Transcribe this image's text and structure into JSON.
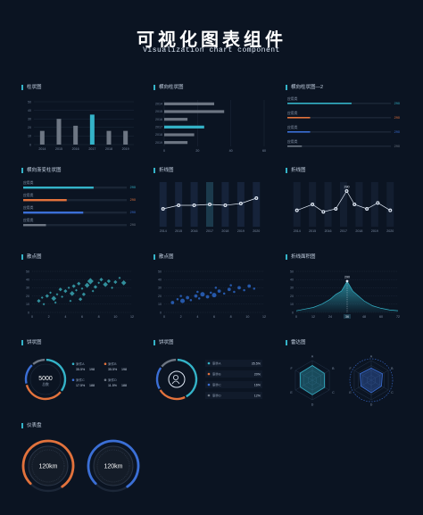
{
  "header": {
    "title": "可视化图表组件",
    "subtitle": "Visualization chart component"
  },
  "panel_titles": {
    "bar": "柱状图",
    "hbar": "横向柱状图",
    "hbar2": "横向柱状图—2",
    "gradient_bar": "横向渐变柱状图",
    "line_bar": "折线图",
    "line": "折线图",
    "scatter1": "散点图",
    "scatter2": "散点图",
    "area": "折线面积图",
    "pie1": "饼状图",
    "pie2": "饼状图",
    "radar": "雷达图",
    "gauge": "仪表盘"
  },
  "colors": {
    "accent": "#34b3c8",
    "orange": "#e2723c",
    "blue": "#3b6fd6",
    "gray": "#6d7683",
    "grid": "#1e2b3d"
  },
  "chart_data": [
    {
      "id": "bar",
      "type": "bar",
      "categories": [
        "2014",
        "2015",
        "2016",
        "2017",
        "2018",
        "2019"
      ],
      "values": [
        16,
        30,
        22,
        35,
        16,
        16
      ],
      "highlight_index": 3,
      "ylim": [
        0,
        50
      ],
      "yticks": [
        "0",
        "10",
        "20",
        "30",
        "40",
        "50"
      ]
    },
    {
      "id": "hbar",
      "type": "bar",
      "orientation": "horizontal",
      "categories": [
        "2014",
        "2015",
        "2016",
        "2017",
        "2018",
        "2019"
      ],
      "values": [
        30,
        36,
        14,
        24,
        18,
        14
      ],
      "highlight_index": 3,
      "xlim": [
        0,
        60
      ],
      "xticks": [
        "0",
        "20",
        "40",
        "60"
      ]
    },
    {
      "id": "hbar2",
      "type": "bar",
      "orientation": "horizontal",
      "items": [
        {
          "label": "应用类",
          "value_label": "290",
          "fraction": 0.62,
          "color": "#34b3c8"
        },
        {
          "label": "应用类",
          "value_label": "290",
          "fraction": 0.22,
          "color": "#e2723c"
        },
        {
          "label": "应用类",
          "value_label": "290",
          "fraction": 0.22,
          "color": "#3b6fd6"
        },
        {
          "label": "应用类",
          "value_label": "290",
          "fraction": 0.14,
          "color": "#6d7683"
        }
      ]
    },
    {
      "id": "gradient_bar",
      "type": "bar",
      "orientation": "horizontal",
      "items": [
        {
          "label": "应用类",
          "value_label": "290",
          "fraction": 0.68,
          "color": "#34b3c8"
        },
        {
          "label": "应用类",
          "value_label": "290",
          "fraction": 0.42,
          "color": "#e2723c"
        },
        {
          "label": "应用类",
          "value_label": "290",
          "fraction": 0.58,
          "color": "#3b6fd6"
        },
        {
          "label": "应用类",
          "value_label": "290",
          "fraction": 0.22,
          "color": "#6d7683"
        }
      ]
    },
    {
      "id": "line_bar",
      "type": "line",
      "categories": [
        "2014",
        "2015",
        "2016",
        "2017",
        "2018",
        "2019",
        "2020"
      ],
      "values": [
        20,
        24,
        24,
        25,
        24,
        26,
        32
      ],
      "highlight_index": 3,
      "ylim": [
        0,
        50
      ]
    },
    {
      "id": "line",
      "type": "line",
      "categories": [
        "2014",
        "2015",
        "2016",
        "2017",
        "2018",
        "2019",
        "2020"
      ],
      "values": [
        22,
        30,
        20,
        24,
        48,
        30,
        24,
        32,
        22
      ],
      "x": [
        0,
        1,
        1.7,
        2.5,
        3.2,
        3.7,
        4.5,
        5.2,
        6
      ],
      "peak_label": "290",
      "peak_index": 4,
      "ylim": [
        0,
        60
      ]
    },
    {
      "id": "scatter1",
      "type": "scatter",
      "ylim": [
        0,
        50
      ],
      "yticks": [
        "0",
        "10",
        "20",
        "30",
        "40",
        "50"
      ],
      "xticks": [
        "0",
        "2",
        "4",
        "6",
        "8",
        "10",
        "12"
      ],
      "xlim": [
        0,
        12
      ],
      "points": [
        [
          0.8,
          14
        ],
        [
          1.2,
          18
        ],
        [
          1.8,
          20
        ],
        [
          2.2,
          24
        ],
        [
          2.6,
          17
        ],
        [
          3.0,
          22
        ],
        [
          3.4,
          28
        ],
        [
          3.6,
          19
        ],
        [
          4.0,
          26
        ],
        [
          4.4,
          30
        ],
        [
          4.8,
          23
        ],
        [
          5.0,
          32
        ],
        [
          5.3,
          27
        ],
        [
          5.6,
          35
        ],
        [
          6.0,
          29
        ],
        [
          6.2,
          22
        ],
        [
          6.6,
          33
        ],
        [
          7.0,
          38
        ],
        [
          7.3,
          26
        ],
        [
          7.6,
          31
        ],
        [
          8.0,
          36
        ],
        [
          8.3,
          40
        ],
        [
          8.8,
          34
        ],
        [
          9.2,
          38
        ],
        [
          9.6,
          30
        ],
        [
          10.0,
          37
        ],
        [
          10.5,
          42
        ],
        [
          11.0,
          36
        ],
        [
          1.4,
          10
        ],
        [
          2.8,
          12
        ],
        [
          5.8,
          16
        ],
        [
          4.6,
          14
        ]
      ],
      "sizes": [
        3,
        2,
        3,
        2,
        4,
        2,
        3,
        2,
        3,
        2,
        4,
        3,
        2,
        3,
        2,
        3,
        4,
        5,
        2,
        3,
        2,
        3,
        4,
        3,
        2,
        3,
        2,
        4,
        2,
        2,
        3,
        2
      ]
    },
    {
      "id": "scatter2",
      "type": "scatter",
      "ylim": [
        0,
        50
      ],
      "yticks": [
        "0",
        "10",
        "20",
        "30",
        "40",
        "50"
      ],
      "xticks": [
        "0",
        "2",
        "4",
        "6",
        "8",
        "10",
        "12"
      ],
      "xlim": [
        0,
        12
      ],
      "points": [
        [
          1.0,
          12
        ],
        [
          1.6,
          16
        ],
        [
          2.2,
          14
        ],
        [
          2.8,
          18
        ],
        [
          3.2,
          15
        ],
        [
          3.8,
          20
        ],
        [
          4.2,
          17
        ],
        [
          4.6,
          22
        ],
        [
          5.2,
          19
        ],
        [
          5.6,
          24
        ],
        [
          6.0,
          21
        ],
        [
          6.6,
          26
        ],
        [
          7.2,
          23
        ],
        [
          7.8,
          28
        ],
        [
          8.4,
          25
        ],
        [
          9.0,
          30
        ],
        [
          9.6,
          27
        ],
        [
          10.2,
          32
        ],
        [
          10.8,
          29
        ],
        [
          2.0,
          20
        ],
        [
          4.0,
          25
        ],
        [
          6.2,
          30
        ],
        [
          8.0,
          33
        ]
      ],
      "sizes": [
        3,
        2,
        4,
        3,
        2,
        3,
        2,
        4,
        3,
        2,
        4,
        3,
        2,
        3,
        2,
        3,
        2,
        3,
        2,
        2,
        2,
        2,
        2
      ]
    },
    {
      "id": "area",
      "type": "area",
      "ylim": [
        0,
        50
      ],
      "yticks": [
        "0",
        "10",
        "20",
        "30",
        "40",
        "50"
      ],
      "xticks": [
        "0",
        "12",
        "24",
        "36",
        "48",
        "60",
        "72"
      ],
      "highlight_tick_index": 3,
      "x": [
        0,
        6,
        12,
        18,
        24,
        28,
        32,
        36,
        40,
        44,
        48,
        54,
        60,
        66,
        72
      ],
      "values": [
        2,
        4,
        6,
        10,
        16,
        22,
        26,
        38,
        26,
        20,
        14,
        8,
        5,
        3,
        2
      ],
      "peak_label": "290",
      "peak_index": 7
    },
    {
      "id": "pie1",
      "type": "pie",
      "center_value": "5000",
      "center_label": "总数",
      "legend": [
        {
          "name": "案件A",
          "percent": "35.5%",
          "count": "198",
          "color": "#34b3c8"
        },
        {
          "name": "案件B",
          "percent": "35.5%",
          "count": "198",
          "color": "#e2723c"
        },
        {
          "name": "案件C",
          "percent": "17.5%",
          "count": "188",
          "color": "#3b6fd6"
        },
        {
          "name": "案件D",
          "percent": "11.5%",
          "count": "188",
          "color": "#6d7683"
        }
      ],
      "values": [
        35.5,
        35.5,
        17.5,
        11.5
      ]
    },
    {
      "id": "pie2",
      "type": "pie",
      "legend": [
        {
          "name": "案件A",
          "percent": "35.5%",
          "color": "#34b3c8"
        },
        {
          "name": "案件B",
          "percent": "20%",
          "color": "#e2723c"
        },
        {
          "name": "案件C",
          "percent": "16%",
          "color": "#3b6fd6"
        },
        {
          "name": "案件D",
          "percent": "12%",
          "color": "#6d7683"
        }
      ],
      "values": [
        35.5,
        20,
        16,
        12
      ]
    },
    {
      "id": "radar",
      "type": "radar",
      "axes": [
        "A",
        "B",
        "C",
        "D",
        "E",
        "F"
      ],
      "series": [
        {
          "values": [
            0.75,
            0.7,
            0.72,
            0.74,
            0.7,
            0.72
          ],
          "color": "#34b3c8"
        },
        {
          "values": [
            0.62,
            0.66,
            0.6,
            0.64,
            0.6,
            0.66
          ],
          "color": "#3b6fd6"
        }
      ]
    },
    {
      "id": "gauge",
      "type": "gauge",
      "gauges": [
        {
          "value_label": "120km",
          "fraction": 0.78,
          "color": "#e2723c"
        },
        {
          "value_label": "120km",
          "fraction": 0.78,
          "color": "#3b6fd6"
        }
      ]
    }
  ]
}
